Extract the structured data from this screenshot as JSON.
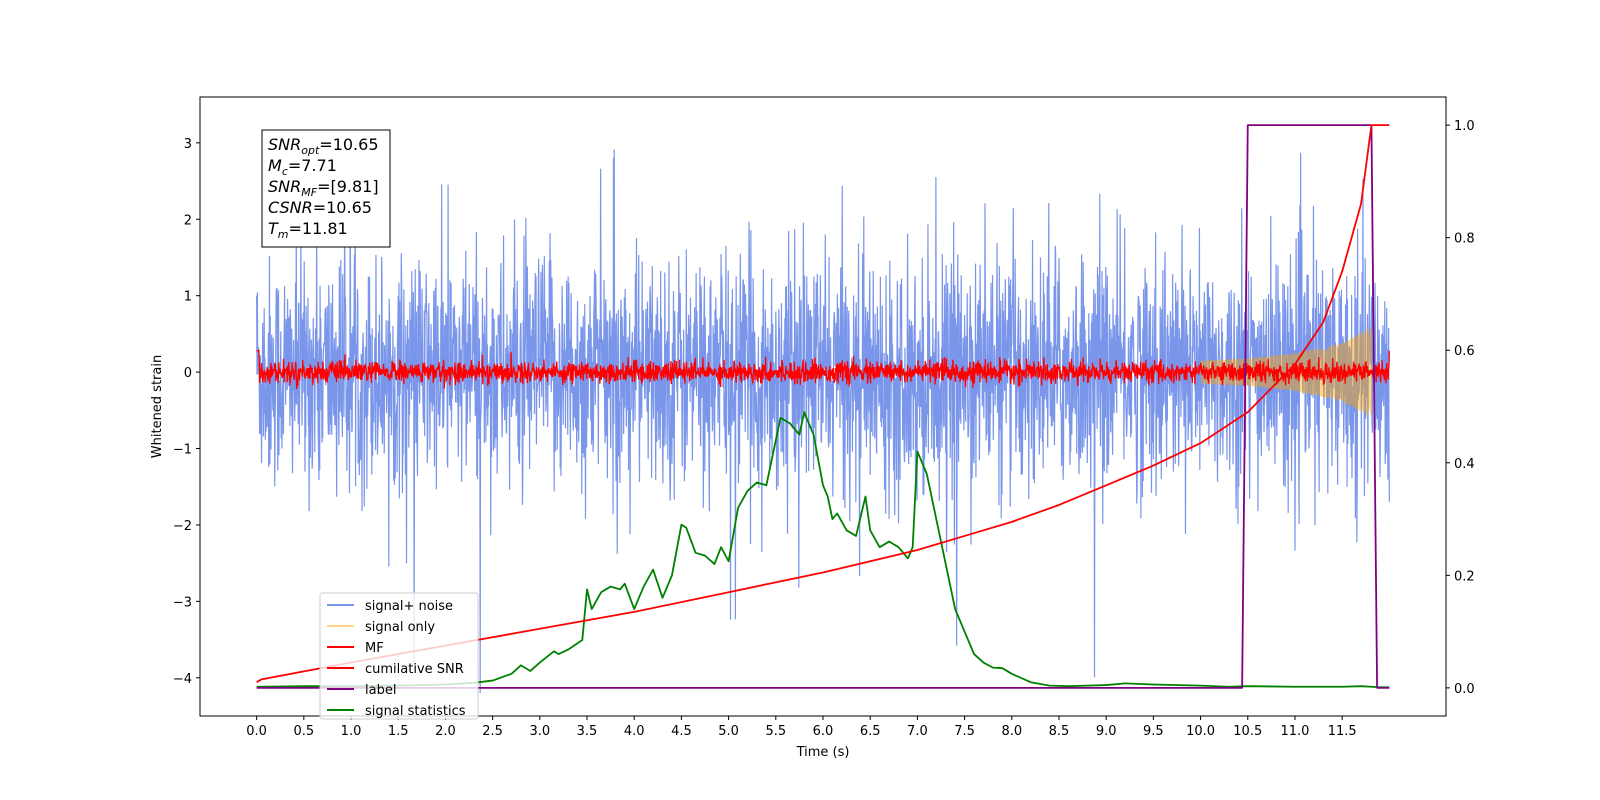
{
  "chart_data": {
    "type": "line",
    "xlabel": "Time (s)",
    "ylabel_left": "Whitened strain",
    "ylabel_right": "",
    "xlim": [
      -0.6,
      12.6
    ],
    "ylim_left": [
      -4.5,
      3.6
    ],
    "ylim_right": [
      -0.05,
      1.05
    ],
    "x_ticks": [
      "0.0",
      "0.5",
      "1.0",
      "1.5",
      "2.0",
      "2.5",
      "3.0",
      "3.5",
      "4.0",
      "4.5",
      "5.0",
      "5.5",
      "6.0",
      "6.5",
      "7.0",
      "7.5",
      "8.0",
      "8.5",
      "9.0",
      "9.5",
      "10.0",
      "10.5",
      "11.0",
      "11.5"
    ],
    "y_ticks_left": [
      "3",
      "2",
      "1",
      "0",
      "−1",
      "−2",
      "−3",
      "−4"
    ],
    "y_ticks_right": [
      "0.0",
      "0.2",
      "0.4",
      "0.6",
      "0.8",
      "1.0"
    ],
    "grid": false,
    "legend_position": "lower-left",
    "annotation": {
      "lines": [
        {
          "base": "SNR",
          "sub": "opt",
          "value": "=10.65"
        },
        {
          "base": "M",
          "sub": "c",
          "value": "=7.71"
        },
        {
          "base": "SNR",
          "sub": "MF",
          "value": "=[9.81]"
        },
        {
          "base": "CSNR",
          "sub": "",
          "value": "=10.65"
        },
        {
          "base": "T",
          "sub": "m",
          "value": "=11.81"
        }
      ]
    },
    "series": [
      {
        "name": "signal+ noise",
        "axis": "left",
        "color": "#4169e1",
        "style": "noise",
        "t_range": [
          0.0,
          12.0
        ],
        "approx_std": 1.0
      },
      {
        "name": "signal only",
        "axis": "left",
        "color": "#ffa500",
        "style": "chirp",
        "t_range": [
          10.0,
          11.81
        ],
        "envelope": [
          [
            10.0,
            0.15
          ],
          [
            10.5,
            0.18
          ],
          [
            11.0,
            0.25
          ],
          [
            11.5,
            0.38
          ],
          [
            11.81,
            0.6
          ]
        ]
      },
      {
        "name": "MF",
        "axis": "left",
        "color": "#ff0000",
        "style": "noise",
        "t_range": [
          0.0,
          12.0
        ],
        "approx_std": 0.07
      },
      {
        "name": "cumilative SNR",
        "axis": "right",
        "color": "#ff0000",
        "x": [
          0.0,
          0.05,
          1.0,
          2.0,
          3.0,
          4.0,
          5.0,
          6.0,
          7.0,
          7.5,
          8.0,
          8.5,
          9.0,
          9.5,
          10.0,
          10.5,
          11.0,
          11.3,
          11.5,
          11.7,
          11.81,
          12.0
        ],
        "y": [
          0.01,
          0.015,
          0.045,
          0.075,
          0.105,
          0.135,
          0.17,
          0.205,
          0.245,
          0.27,
          0.295,
          0.325,
          0.36,
          0.395,
          0.435,
          0.49,
          0.575,
          0.65,
          0.74,
          0.86,
          1.0,
          1.0
        ]
      },
      {
        "name": "label",
        "axis": "right",
        "color": "#800080",
        "x": [
          0.0,
          10.44,
          10.5,
          11.81,
          11.87,
          12.0
        ],
        "y": [
          0.0,
          0.0,
          1.0,
          1.0,
          0.0,
          0.0
        ]
      },
      {
        "name": "signal statistics",
        "axis": "right",
        "color": "#008000",
        "x": [
          0.0,
          0.5,
          1.0,
          1.5,
          2.0,
          2.3,
          2.5,
          2.7,
          2.8,
          2.9,
          3.0,
          3.15,
          3.2,
          3.3,
          3.45,
          3.5,
          3.55,
          3.65,
          3.75,
          3.85,
          3.9,
          4.0,
          4.1,
          4.2,
          4.3,
          4.35,
          4.4,
          4.5,
          4.55,
          4.65,
          4.75,
          4.85,
          4.92,
          5.0,
          5.1,
          5.2,
          5.3,
          5.4,
          5.45,
          5.55,
          5.65,
          5.75,
          5.8,
          5.9,
          6.0,
          6.05,
          6.1,
          6.15,
          6.25,
          6.35,
          6.4,
          6.45,
          6.5,
          6.6,
          6.7,
          6.8,
          6.9,
          6.95,
          7.0,
          7.1,
          7.2,
          7.3,
          7.4,
          7.5,
          7.6,
          7.7,
          7.8,
          7.9,
          8.0,
          8.2,
          8.4,
          8.6,
          8.8,
          9.0,
          9.2,
          9.5,
          10.0,
          10.3,
          10.5,
          11.0,
          11.5,
          11.7,
          11.81,
          11.9,
          12.0
        ],
        "y": [
          0.002,
          0.003,
          0.003,
          0.004,
          0.006,
          0.009,
          0.013,
          0.025,
          0.04,
          0.03,
          0.045,
          0.065,
          0.06,
          0.068,
          0.085,
          0.175,
          0.14,
          0.17,
          0.18,
          0.175,
          0.185,
          0.14,
          0.18,
          0.21,
          0.16,
          0.18,
          0.2,
          0.29,
          0.285,
          0.24,
          0.235,
          0.22,
          0.25,
          0.225,
          0.32,
          0.35,
          0.365,
          0.36,
          0.4,
          0.48,
          0.47,
          0.45,
          0.49,
          0.45,
          0.36,
          0.34,
          0.3,
          0.31,
          0.28,
          0.27,
          0.305,
          0.34,
          0.28,
          0.25,
          0.26,
          0.25,
          0.23,
          0.25,
          0.42,
          0.38,
          0.3,
          0.22,
          0.14,
          0.1,
          0.06,
          0.045,
          0.036,
          0.035,
          0.025,
          0.01,
          0.004,
          0.003,
          0.004,
          0.005,
          0.008,
          0.006,
          0.004,
          0.002,
          0.003,
          0.002,
          0.002,
          0.003,
          0.002,
          0.001,
          0.001
        ]
      }
    ]
  }
}
